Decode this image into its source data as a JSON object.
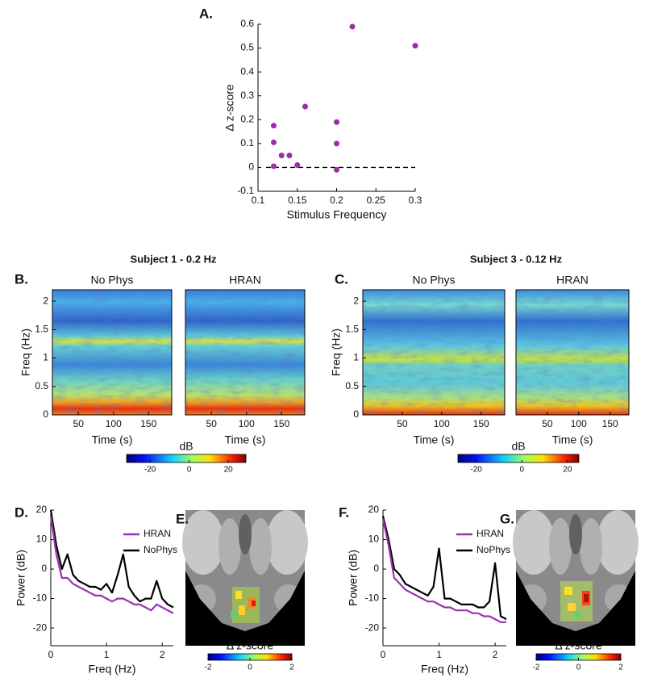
{
  "chart_data": [
    {
      "type": "scatter",
      "panel_label": "A.",
      "x_label": "Stimulus Frequency",
      "y_label": "Δ z-score",
      "x": [
        0.12,
        0.12,
        0.12,
        0.13,
        0.14,
        0.15,
        0.16,
        0.2,
        0.2,
        0.2,
        0.22,
        0.3
      ],
      "values": [
        0.175,
        0.105,
        0.005,
        0.05,
        0.05,
        0.01,
        0.255,
        0.19,
        0.1,
        -0.01,
        0.59,
        0.51
      ],
      "color": "#9a2ea6",
      "xlim": [
        0.1,
        0.3
      ],
      "xticks": [
        0.1,
        0.15,
        0.2,
        0.25,
        0.3
      ],
      "ylim": [
        -0.1,
        0.6
      ],
      "yticks": [
        -0.1,
        0,
        0.1,
        0.2,
        0.3,
        0.4,
        0.5,
        0.6
      ],
      "reference_line": 0
    },
    {
      "type": "heatmap",
      "panel_label": "B.",
      "title": "Subject 1 - 0.2 Hz",
      "panels": [
        {
          "title": "No Phys"
        },
        {
          "title": "HRAN"
        }
      ],
      "x_label": "Time (s)",
      "y_label": "Freq (Hz)",
      "xlim": [
        13,
        183
      ],
      "xticks": [
        50,
        100,
        150
      ],
      "ylim": [
        0,
        2.2
      ],
      "yticks": [
        0,
        0.5,
        1,
        1.5,
        2
      ],
      "colorbar_label": "dB",
      "clim": [
        -32,
        29
      ],
      "cticks": [
        -20,
        0,
        20
      ]
    },
    {
      "type": "heatmap",
      "panel_label": "C.",
      "title": "Subject 3 - 0.12 Hz",
      "panels": [
        {
          "title": "No Phys"
        },
        {
          "title": "HRAN"
        }
      ],
      "x_label": "Time (s)",
      "y_label": "Freq (Hz)",
      "xlim": [
        0,
        180
      ],
      "xticks": [
        50,
        100,
        150
      ],
      "ylim": [
        0,
        2.2
      ],
      "yticks": [
        0,
        0.5,
        1,
        1.5,
        2
      ],
      "colorbar_label": "dB",
      "clim": [
        -28,
        25
      ],
      "cticks": [
        -20,
        0,
        20
      ]
    },
    {
      "type": "line",
      "panel_label": "D.",
      "x_label": "Freq (Hz)",
      "y_label": "Power (dB)",
      "x": [
        0,
        0.1,
        0.2,
        0.3,
        0.4,
        0.5,
        0.6,
        0.7,
        0.8,
        0.9,
        1,
        1.1,
        1.2,
        1.3,
        1.4,
        1.5,
        1.6,
        1.7,
        1.8,
        1.9,
        2,
        2.1,
        2.2
      ],
      "series": [
        {
          "name": "HRAN",
          "color": "#9b30b0",
          "values": [
            18,
            5,
            -3,
            -3,
            -5,
            -6,
            -7,
            -8,
            -9,
            -9,
            -10,
            -11,
            -10,
            -10,
            -11,
            -12,
            -12,
            -13,
            -14,
            -12,
            -13,
            -14,
            -15
          ]
        },
        {
          "name": "NoPhys",
          "color": "#000000",
          "values": [
            20,
            8,
            0,
            5,
            -2,
            -4,
            -5,
            -6,
            -6,
            -7,
            -5,
            -8,
            -2,
            5,
            -6,
            -9,
            -11,
            -10,
            -10,
            -4,
            -10,
            -12,
            -13
          ]
        }
      ],
      "xlim": [
        0,
        2.2
      ],
      "xticks": [
        0,
        1,
        2
      ],
      "ylim": [
        -26,
        20
      ],
      "yticks": [
        -20,
        -10,
        0,
        10,
        20
      ],
      "legend": "upper right"
    },
    {
      "type": "image",
      "panel_label": "E.",
      "colorbar_label": "Δ z-score",
      "clim": [
        -2,
        2
      ],
      "cticks": [
        -2,
        0,
        2
      ]
    },
    {
      "type": "line",
      "panel_label": "F.",
      "x_label": "Freq (Hz)",
      "y_label": "Power (dB)",
      "x": [
        0,
        0.1,
        0.2,
        0.3,
        0.4,
        0.5,
        0.6,
        0.7,
        0.8,
        0.9,
        1,
        1.1,
        1.2,
        1.3,
        1.4,
        1.5,
        1.6,
        1.7,
        1.8,
        1.9,
        2,
        2.1,
        2.2
      ],
      "series": [
        {
          "name": "HRAN",
          "color": "#9b30b0",
          "values": [
            17,
            8,
            -3,
            -5,
            -7,
            -8,
            -9,
            -10,
            -11,
            -11,
            -12,
            -13,
            -13,
            -14,
            -14,
            -14,
            -15,
            -15,
            -16,
            -16,
            -17,
            -18,
            -18
          ]
        },
        {
          "name": "NoPhys",
          "color": "#000000",
          "values": [
            18,
            10,
            0,
            -2,
            -5,
            -6,
            -7,
            -8,
            -9,
            -6,
            7,
            -10,
            -10,
            -11,
            -12,
            -12,
            -12,
            -13,
            -13,
            -11,
            2,
            -16,
            -17
          ]
        }
      ],
      "xlim": [
        0,
        2.2
      ],
      "xticks": [
        0,
        1,
        2
      ],
      "ylim": [
        -26,
        20
      ],
      "yticks": [
        -20,
        -10,
        0,
        10,
        20
      ],
      "legend": "upper right"
    },
    {
      "type": "image",
      "panel_label": "G.",
      "colorbar_label": "Δ z-score",
      "clim": [
        -2,
        2
      ],
      "cticks": [
        -2,
        0,
        2
      ]
    }
  ]
}
